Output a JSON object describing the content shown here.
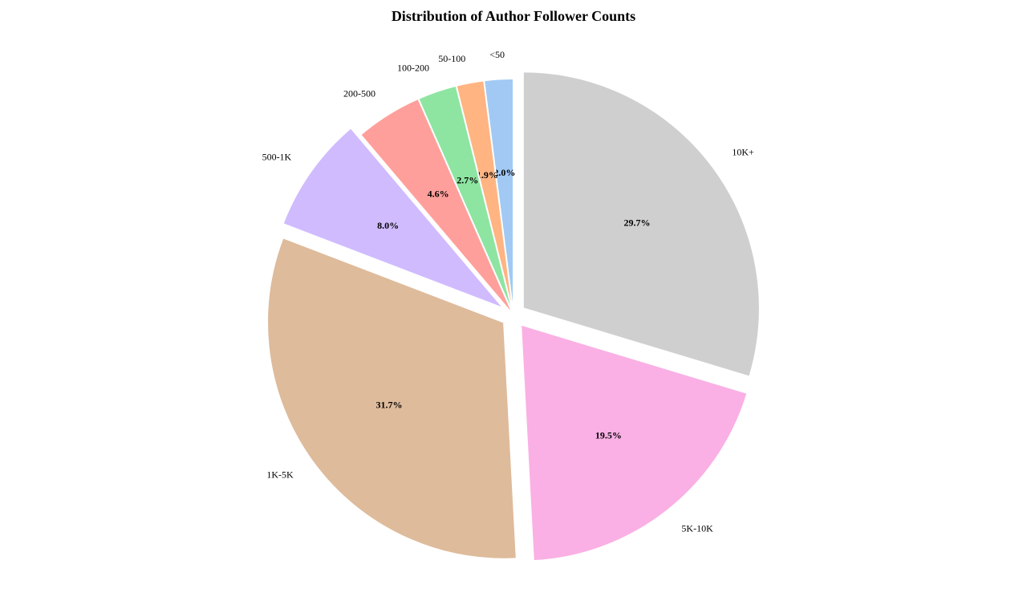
{
  "chart_data": {
    "type": "pie",
    "title": "Distribution of Author Follower Counts",
    "start_angle_deg": 90,
    "direction": "counterclockwise",
    "slices": [
      {
        "label": "<50",
        "value": 2.0,
        "pct_label": "2.0%",
        "color": "#a1c9f4",
        "explode": 0.0
      },
      {
        "label": "50-100",
        "value": 1.9,
        "pct_label": "1.9%",
        "color": "#ffb482",
        "explode": 0.0
      },
      {
        "label": "100-200",
        "value": 2.7,
        "pct_label": "2.7%",
        "color": "#8de5a1",
        "explode": 0.0
      },
      {
        "label": "200-500",
        "value": 4.6,
        "pct_label": "4.6%",
        "color": "#ff9f9b",
        "explode": 0.0
      },
      {
        "label": "500-1K",
        "value": 8.0,
        "pct_label": "8.0%",
        "color": "#d0bbff",
        "explode": 0.05
      },
      {
        "label": "1K-5K",
        "value": 31.7,
        "pct_label": "31.7%",
        "color": "#debb9b",
        "explode": 0.05
      },
      {
        "label": "5K-10K",
        "value": 19.5,
        "pct_label": "19.5%",
        "color": "#fab0e4",
        "explode": 0.05
      },
      {
        "label": "10K+",
        "value": 29.7,
        "pct_label": "29.7%",
        "color": "#cfcfcf",
        "explode": 0.05
      }
    ]
  }
}
